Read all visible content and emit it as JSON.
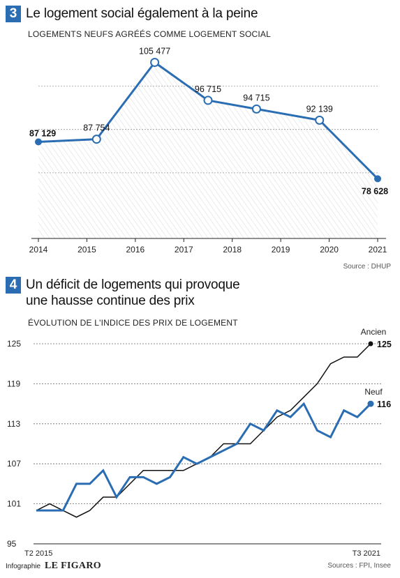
{
  "chart_data": [
    {
      "type": "line",
      "number": "3",
      "title": "Le logement social également à la peine",
      "subtitle": "LOGEMENTS NEUFS AGRÉÉS COMME LOGEMENT SOCIAL",
      "source": "Source : DHUP",
      "x": [
        2014,
        2015,
        2016,
        2017,
        2018,
        2019,
        2020,
        2021
      ],
      "x_tick_labels": [
        "2014",
        "2015",
        "2016",
        "2017",
        "2018",
        "2019",
        "2020",
        "2021"
      ],
      "series": [
        {
          "x": [
            2014,
            2015.2,
            2016.4,
            2017.5,
            2018.5,
            2019.8,
            2021
          ],
          "values": [
            87129,
            87754,
            105477,
            96715,
            94715,
            92139,
            78628
          ],
          "labels": [
            "87 129",
            "87 754",
            "105 477",
            "96 715",
            "94 715",
            "92 139",
            "78 628"
          ],
          "color": "#2a6db2"
        }
      ],
      "ylim": [
        70000,
        107000
      ],
      "grid": true
    },
    {
      "type": "line",
      "number": "4",
      "title_lines": [
        "Un déficit de logements qui provoque",
        "une hausse continue des prix"
      ],
      "subtitle": "ÉVOLUTION DE L'INDICE DES PRIX DE LOGEMENT",
      "source": "Sources : FPI, Insee",
      "x_tick_labels": [
        "T2 2015",
        "T3 2021"
      ],
      "y_ticks": [
        95,
        101,
        107,
        113,
        119,
        125
      ],
      "y_tick_labels": [
        "95",
        "101",
        "107",
        "113",
        "119",
        "125"
      ],
      "ylim": [
        95,
        125
      ],
      "grid": true,
      "series": [
        {
          "name": "Ancien",
          "end_label": "125",
          "color": "#111111",
          "values": [
            100,
            101,
            100,
            99,
            100,
            102,
            102,
            104,
            106,
            106,
            106,
            106,
            107,
            108,
            110,
            110,
            110,
            112,
            114,
            115,
            117,
            119,
            122,
            123,
            123,
            125
          ]
        },
        {
          "name": "Neuf",
          "end_label": "116",
          "color": "#2a6db2",
          "values": [
            100,
            100,
            100,
            104,
            104,
            106,
            102,
            105,
            105,
            104,
            105,
            108,
            107,
            108,
            109,
            110,
            113,
            112,
            115,
            114,
            116,
            112,
            111,
            115,
            114,
            116
          ]
        }
      ]
    }
  ],
  "footer": {
    "credit": "Infographie",
    "brand": "LE FIGARO"
  }
}
